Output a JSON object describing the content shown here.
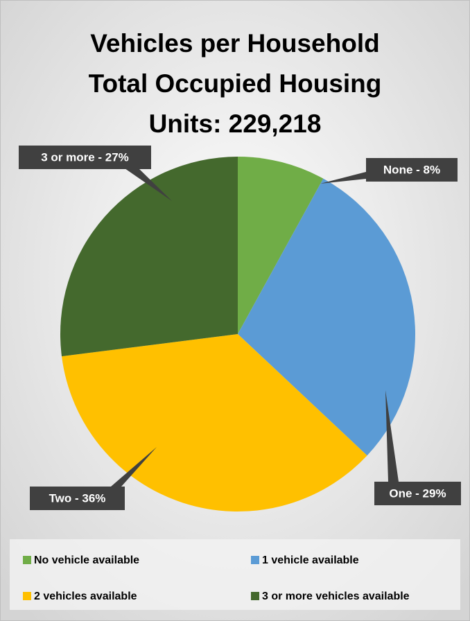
{
  "chart_data": {
    "type": "pie",
    "title": [
      "Vehicles per Household",
      "Total Occupied Housing",
      "Units: 229,218"
    ],
    "categories": [
      "No vehicle available",
      "1 vehicle available",
      "2 vehicles available",
      "3 or more vehicles available"
    ],
    "values": [
      8,
      29,
      36,
      27
    ],
    "value_labels": [
      "None - 8%",
      "One - 29%",
      "Two - 36%",
      "3 or more - 27%"
    ],
    "colors": [
      "#70ad47",
      "#5b9bd5",
      "#ffc000",
      "#44692d"
    ],
    "legend": "bottom"
  }
}
